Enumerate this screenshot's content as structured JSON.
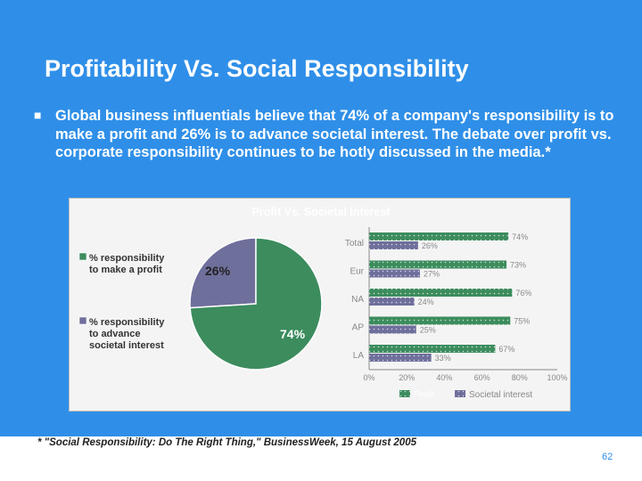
{
  "slide": {
    "title": "Profitability Vs. Social Responsibility",
    "bullet": "Global business influentials believe that 74% of a company's responsibility is to make a profit and 26% is to advance societal interest. The debate over profit vs. corporate responsibility continues to be hotly discussed in the media.*",
    "footnote": "* \"Social Responsibility: Do The Right Thing,\" BusinessWeek, 15 August 2005",
    "page_number": "62",
    "colors": {
      "background": "#2f8fe8",
      "text": "#ffffff",
      "profit": "#3c8c5e",
      "societal": "#6f6f9c"
    }
  },
  "chart_data": [
    {
      "type": "pie",
      "labels": [
        "% responsibility to make a profit",
        "% responsibility to advance societal interest"
      ],
      "values": [
        74,
        26
      ],
      "value_labels": [
        "74%",
        "26%"
      ],
      "colors": [
        "#3c8c5e",
        "#6f6f9c"
      ],
      "legend_position": "left"
    },
    {
      "type": "bar",
      "orientation": "horizontal",
      "title": "Profit Vs. Societal Interest",
      "categories": [
        "Total",
        "Eur",
        "NA",
        "AP",
        "LA"
      ],
      "series": [
        {
          "name": "Profit",
          "values": [
            74,
            73,
            76,
            75,
            67
          ],
          "labels": [
            "74%",
            "73%",
            "76%",
            "75%",
            "67%"
          ],
          "color": "#3c8c5e"
        },
        {
          "name": "Societal interest",
          "values": [
            26,
            27,
            24,
            25,
            33
          ],
          "labels": [
            "26%",
            "27%",
            "24%",
            "25%",
            "33%"
          ],
          "color": "#6f6f9c"
        }
      ],
      "xlim": [
        0,
        100
      ],
      "x_ticks": [
        "0%",
        "20%",
        "40%",
        "60%",
        "80%",
        "100%"
      ],
      "legend_position": "bottom",
      "grid": false
    }
  ]
}
